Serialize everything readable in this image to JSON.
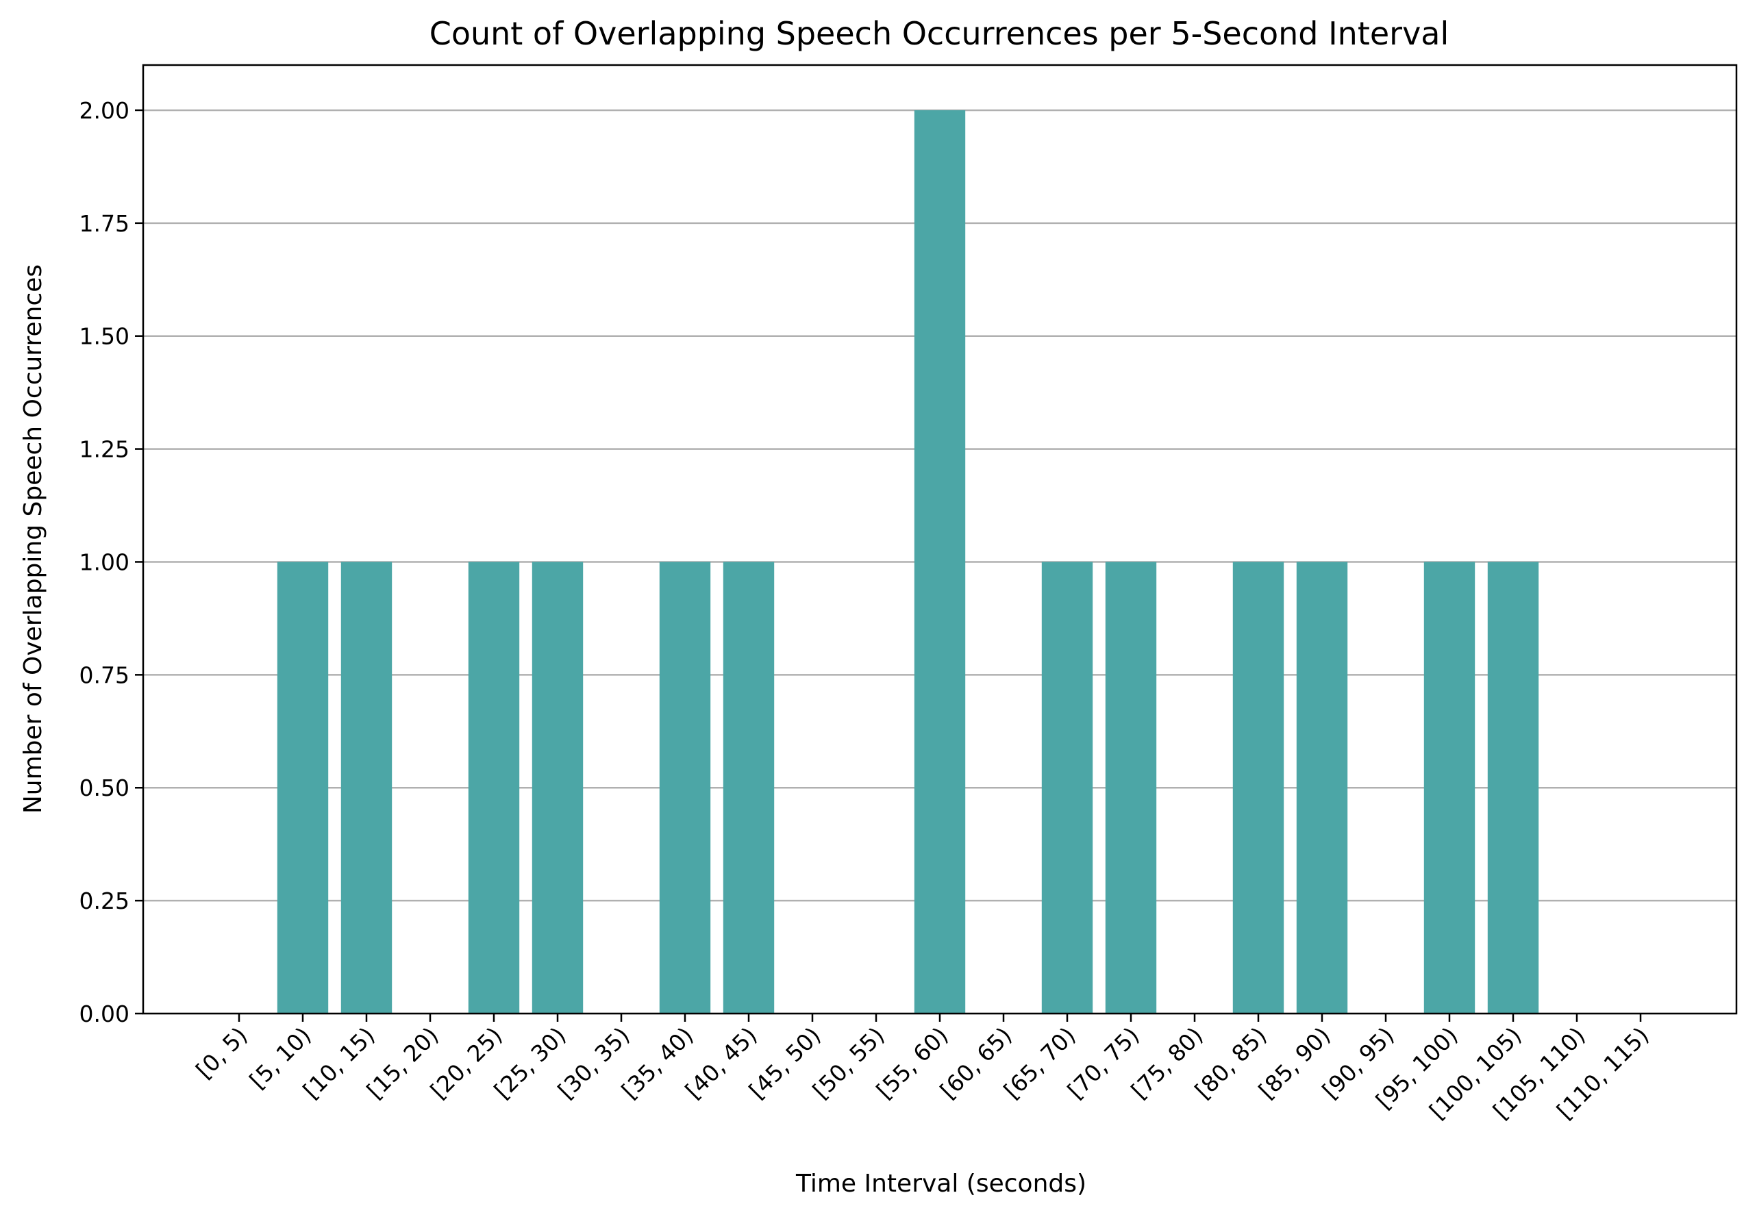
{
  "chart_data": {
    "type": "bar",
    "title": "Count of Overlapping Speech Occurrences per 5-Second Interval",
    "xlabel": "Time Interval (seconds)",
    "ylabel": "Number of Overlapping Speech Occurrences",
    "categories": [
      "[0, 5)",
      "[5, 10)",
      "[10, 15)",
      "[15, 20)",
      "[20, 25)",
      "[25, 30)",
      "[30, 35)",
      "[35, 40)",
      "[40, 45)",
      "[45, 50)",
      "[50, 55)",
      "[55, 60)",
      "[60, 65)",
      "[65, 70)",
      "[70, 75)",
      "[75, 80)",
      "[80, 85)",
      "[85, 90)",
      "[90, 95)",
      "[95, 100)",
      "[100, 105)",
      "[105, 110)",
      "[110, 115)"
    ],
    "values": [
      0,
      1,
      1,
      0,
      1,
      1,
      0,
      1,
      1,
      0,
      0,
      2,
      0,
      1,
      1,
      0,
      1,
      1,
      0,
      1,
      1,
      0,
      0
    ],
    "ylim": [
      0,
      2.1
    ],
    "yticks": [
      "0.00",
      "0.25",
      "0.50",
      "0.75",
      "1.00",
      "1.25",
      "1.50",
      "1.75",
      "2.00"
    ],
    "grid": "y-axis",
    "bar_color": "#4ca6a6"
  }
}
